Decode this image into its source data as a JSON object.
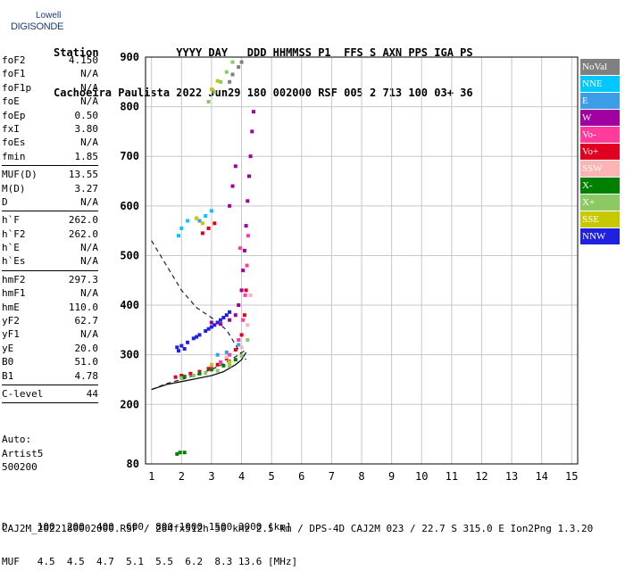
{
  "logo": {
    "line1": "Lowell",
    "line2": "DIGISONDE"
  },
  "header": {
    "line1": "Station            YYYY DAY   DDD HHMMSS P1  FFS S AXN PPS IGA PS",
    "line2": "Cachoeira Paulista 2022 Jun29 180 002000 RSF 005 2 713 100 03+ 36"
  },
  "params": [
    {
      "k": "foF2",
      "v": "4.150"
    },
    {
      "k": "foF1",
      "v": "N/A"
    },
    {
      "k": "foF1p",
      "v": "N/A"
    },
    {
      "k": "foE",
      "v": "N/A"
    },
    {
      "k": "foEp",
      "v": "0.50"
    },
    {
      "k": "fxI",
      "v": "3.80"
    },
    {
      "k": "foEs",
      "v": "N/A"
    },
    {
      "k": "fmin",
      "v": "1.85"
    },
    {
      "sep": true
    },
    {
      "k": "MUF(D)",
      "v": "13.55"
    },
    {
      "k": "M(D)",
      "v": "3.27"
    },
    {
      "k": "D",
      "v": "N/A"
    },
    {
      "sep": true
    },
    {
      "k": "h`F",
      "v": "262.0"
    },
    {
      "k": "h`F2",
      "v": "262.0"
    },
    {
      "k": "h`E",
      "v": "N/A"
    },
    {
      "k": "h`Es",
      "v": "N/A"
    },
    {
      "sep": true
    },
    {
      "k": "hmF2",
      "v": "297.3"
    },
    {
      "k": "hmF1",
      "v": "N/A"
    },
    {
      "k": "hmE",
      "v": "110.0"
    },
    {
      "k": "yF2",
      "v": "62.7"
    },
    {
      "k": "yF1",
      "v": "N/A"
    },
    {
      "k": "yE",
      "v": "20.0"
    },
    {
      "k": "B0",
      "v": "51.0"
    },
    {
      "k": "B1",
      "v": "4.78"
    },
    {
      "sep": true
    },
    {
      "k": "C-level",
      "v": "44"
    },
    {
      "sep": true
    }
  ],
  "auto": {
    "line1": "Auto:",
    "line2": "Artist5",
    "line3": "500200"
  },
  "legend": [
    {
      "label": "NoVal",
      "color": "#808080"
    },
    {
      "label": "NNE",
      "color": "#00c8ff"
    },
    {
      "label": "E",
      "color": "#3c9ee8"
    },
    {
      "label": "W",
      "color": "#a000a0"
    },
    {
      "label": "Vo-",
      "color": "#ff3c9c"
    },
    {
      "label": "Vo+",
      "color": "#e00020"
    },
    {
      "label": "SSW",
      "color": "#ffb4b4"
    },
    {
      "label": "X-",
      "color": "#008000"
    },
    {
      "label": "X+",
      "color": "#8cc864"
    },
    {
      "label": "SSE",
      "color": "#c8c800"
    },
    {
      "label": "NNW",
      "color": "#2020e0"
    }
  ],
  "muf_table": {
    "line1": "D     100  200  400  600  800 1000 1500 3000 [km]",
    "line2": "MUF   4.5  4.5  4.7  5.1  5.5  6.2  8.3 13.6 [MHz]"
  },
  "footer": "CAJ2M_2022180002000.RSF / 284fx512h 50 kHz 2.5 km / DPS-4D CAJ2M 023 / 22.7 S 315.0 E Ion2Png 1.3.20",
  "chart_data": {
    "type": "scatter",
    "xlim": [
      0.8,
      15.2
    ],
    "ylim": [
      80,
      900
    ],
    "xticks": [
      1,
      2,
      3,
      4,
      5,
      6,
      7,
      8,
      9,
      10,
      11,
      12,
      13,
      14,
      15
    ],
    "yticks": [
      80,
      200,
      300,
      400,
      500,
      600,
      700,
      800,
      900
    ],
    "grid": true,
    "series": [
      {
        "color": "#2020e0",
        "points": [
          [
            1.85,
            315
          ],
          [
            2.0,
            318
          ],
          [
            2.2,
            325
          ],
          [
            2.4,
            333
          ],
          [
            2.6,
            340
          ],
          [
            2.8,
            348
          ],
          [
            3.0,
            356
          ],
          [
            3.2,
            365
          ],
          [
            3.4,
            375
          ],
          [
            3.6,
            386
          ],
          [
            1.9,
            308
          ],
          [
            2.1,
            312
          ],
          [
            2.5,
            336
          ],
          [
            2.9,
            352
          ],
          [
            3.1,
            360
          ],
          [
            3.3,
            370
          ],
          [
            3.5,
            380
          ]
        ]
      },
      {
        "color": "#a000a0",
        "points": [
          [
            3.0,
            365
          ],
          [
            3.3,
            362
          ],
          [
            3.6,
            370
          ],
          [
            3.8,
            380
          ],
          [
            3.9,
            400
          ],
          [
            4.0,
            430
          ],
          [
            4.05,
            470
          ],
          [
            4.1,
            510
          ],
          [
            4.15,
            560
          ],
          [
            4.2,
            610
          ],
          [
            4.25,
            660
          ],
          [
            4.3,
            700
          ],
          [
            4.35,
            750
          ],
          [
            4.4,
            790
          ],
          [
            3.7,
            640
          ],
          [
            3.6,
            600
          ],
          [
            3.8,
            680
          ]
        ]
      },
      {
        "color": "#e00020",
        "points": [
          [
            1.8,
            255
          ],
          [
            2.0,
            258
          ],
          [
            2.3,
            262
          ],
          [
            2.6,
            266
          ],
          [
            2.9,
            272
          ],
          [
            3.2,
            280
          ],
          [
            3.5,
            292
          ],
          [
            3.8,
            310
          ],
          [
            4.0,
            340
          ],
          [
            4.1,
            380
          ],
          [
            4.15,
            430
          ],
          [
            2.7,
            545
          ],
          [
            2.9,
            555
          ],
          [
            3.1,
            565
          ]
        ]
      },
      {
        "color": "#ff3c9c",
        "points": [
          [
            3.0,
            275
          ],
          [
            3.3,
            285
          ],
          [
            3.6,
            300
          ],
          [
            3.9,
            330
          ],
          [
            4.05,
            370
          ],
          [
            4.12,
            420
          ],
          [
            4.18,
            480
          ],
          [
            4.22,
            540
          ],
          [
            3.95,
            515
          ]
        ]
      },
      {
        "color": "#00c8ff",
        "points": [
          [
            2.0,
            555
          ],
          [
            2.2,
            570
          ],
          [
            2.5,
            575
          ],
          [
            2.8,
            580
          ],
          [
            3.0,
            590
          ],
          [
            1.9,
            540
          ]
        ]
      },
      {
        "color": "#3c9ee8",
        "points": [
          [
            3.2,
            300
          ],
          [
            3.5,
            305
          ],
          [
            3.9,
            320
          ],
          [
            2.6,
            570
          ]
        ]
      },
      {
        "color": "#8cc864",
        "points": [
          [
            2.0,
            253
          ],
          [
            2.4,
            258
          ],
          [
            2.8,
            263
          ],
          [
            3.2,
            268
          ],
          [
            3.6,
            278
          ],
          [
            4.0,
            298
          ],
          [
            4.2,
            330
          ],
          [
            3.1,
            830
          ],
          [
            3.3,
            850
          ],
          [
            3.5,
            870
          ],
          [
            3.7,
            890
          ],
          [
            2.9,
            810
          ]
        ]
      },
      {
        "color": "#008000",
        "points": [
          [
            2.1,
            256
          ],
          [
            2.6,
            262
          ],
          [
            3.0,
            270
          ],
          [
            3.4,
            278
          ],
          [
            3.8,
            290
          ],
          [
            1.85,
            100
          ],
          [
            1.95,
            103
          ],
          [
            2.1,
            103
          ]
        ]
      },
      {
        "color": "#c8c800",
        "points": [
          [
            2.5,
            575
          ],
          [
            2.7,
            565
          ],
          [
            3.0,
            280
          ],
          [
            3.6,
            285
          ],
          [
            3.0,
            835
          ],
          [
            3.2,
            852
          ]
        ]
      },
      {
        "color": "#ffb4b4",
        "points": [
          [
            3.5,
            295
          ],
          [
            4.0,
            315
          ],
          [
            4.2,
            360
          ],
          [
            4.3,
            420
          ]
        ]
      },
      {
        "color": "#808080",
        "points": [
          [
            3.6,
            850
          ],
          [
            3.7,
            865
          ],
          [
            3.9,
            880
          ],
          [
            4.0,
            890
          ]
        ]
      }
    ],
    "profile_curve": [
      [
        1.0,
        230
      ],
      [
        1.5,
        240
      ],
      [
        2.0,
        246
      ],
      [
        2.5,
        252
      ],
      [
        3.0,
        258
      ],
      [
        3.4,
        266
      ],
      [
        3.8,
        280
      ],
      [
        4.0,
        290
      ],
      [
        4.15,
        305
      ]
    ],
    "dashed_curve": [
      [
        1.0,
        530
      ],
      [
        1.5,
        480
      ],
      [
        2.0,
        430
      ],
      [
        2.5,
        395
      ],
      [
        3.0,
        375
      ],
      [
        3.5,
        350
      ],
      [
        3.8,
        320
      ],
      [
        4.0,
        300
      ],
      [
        4.15,
        290
      ]
    ],
    "dashed_lower": [
      [
        1.0,
        230
      ],
      [
        1.5,
        242
      ],
      [
        2.0,
        250
      ],
      [
        2.5,
        260
      ],
      [
        3.0,
        270
      ],
      [
        3.5,
        285
      ],
      [
        3.9,
        300
      ],
      [
        4.15,
        310
      ]
    ]
  }
}
